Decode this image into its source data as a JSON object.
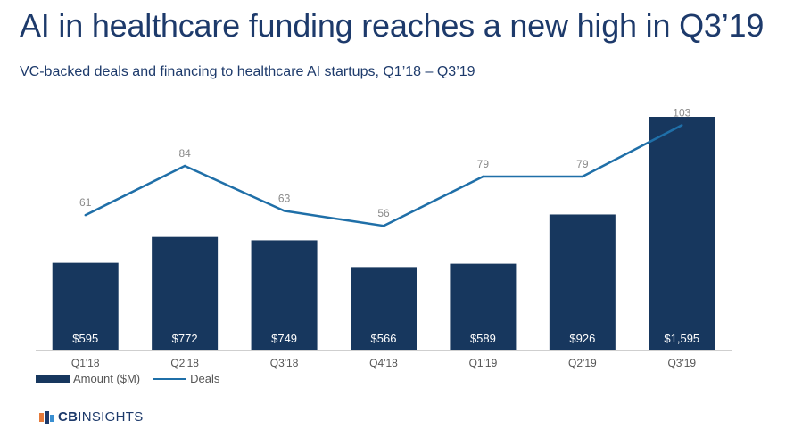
{
  "title": "AI in healthcare funding reaches a new high in Q3’19",
  "subtitle": "VC-backed deals and financing to healthcare AI startups, Q1’18 – Q3’19",
  "brand": {
    "cb": "CB",
    "insights": "INSIGHTS"
  },
  "colors": {
    "bar": "#17375e",
    "line": "#1f6fa8",
    "title": "#1d3a6b"
  },
  "chart_data": {
    "type": "bar+line",
    "categories": [
      "Q1'18",
      "Q2'18",
      "Q3'18",
      "Q4'18",
      "Q1'19",
      "Q2'19",
      "Q3'19"
    ],
    "series": [
      {
        "name": "Amount ($M)",
        "type": "bar",
        "values": [
          595,
          772,
          749,
          566,
          589,
          926,
          1595
        ],
        "labels": [
          "$595",
          "$772",
          "$749",
          "$566",
          "$589",
          "$926",
          "$1,595"
        ]
      },
      {
        "name": "Deals",
        "type": "line",
        "values": [
          61,
          84,
          63,
          56,
          79,
          79,
          103
        ],
        "labels": [
          "61",
          "84",
          "63",
          "56",
          "79",
          "79",
          "103"
        ]
      }
    ],
    "legend_position": "bottom-left",
    "grid": false
  }
}
